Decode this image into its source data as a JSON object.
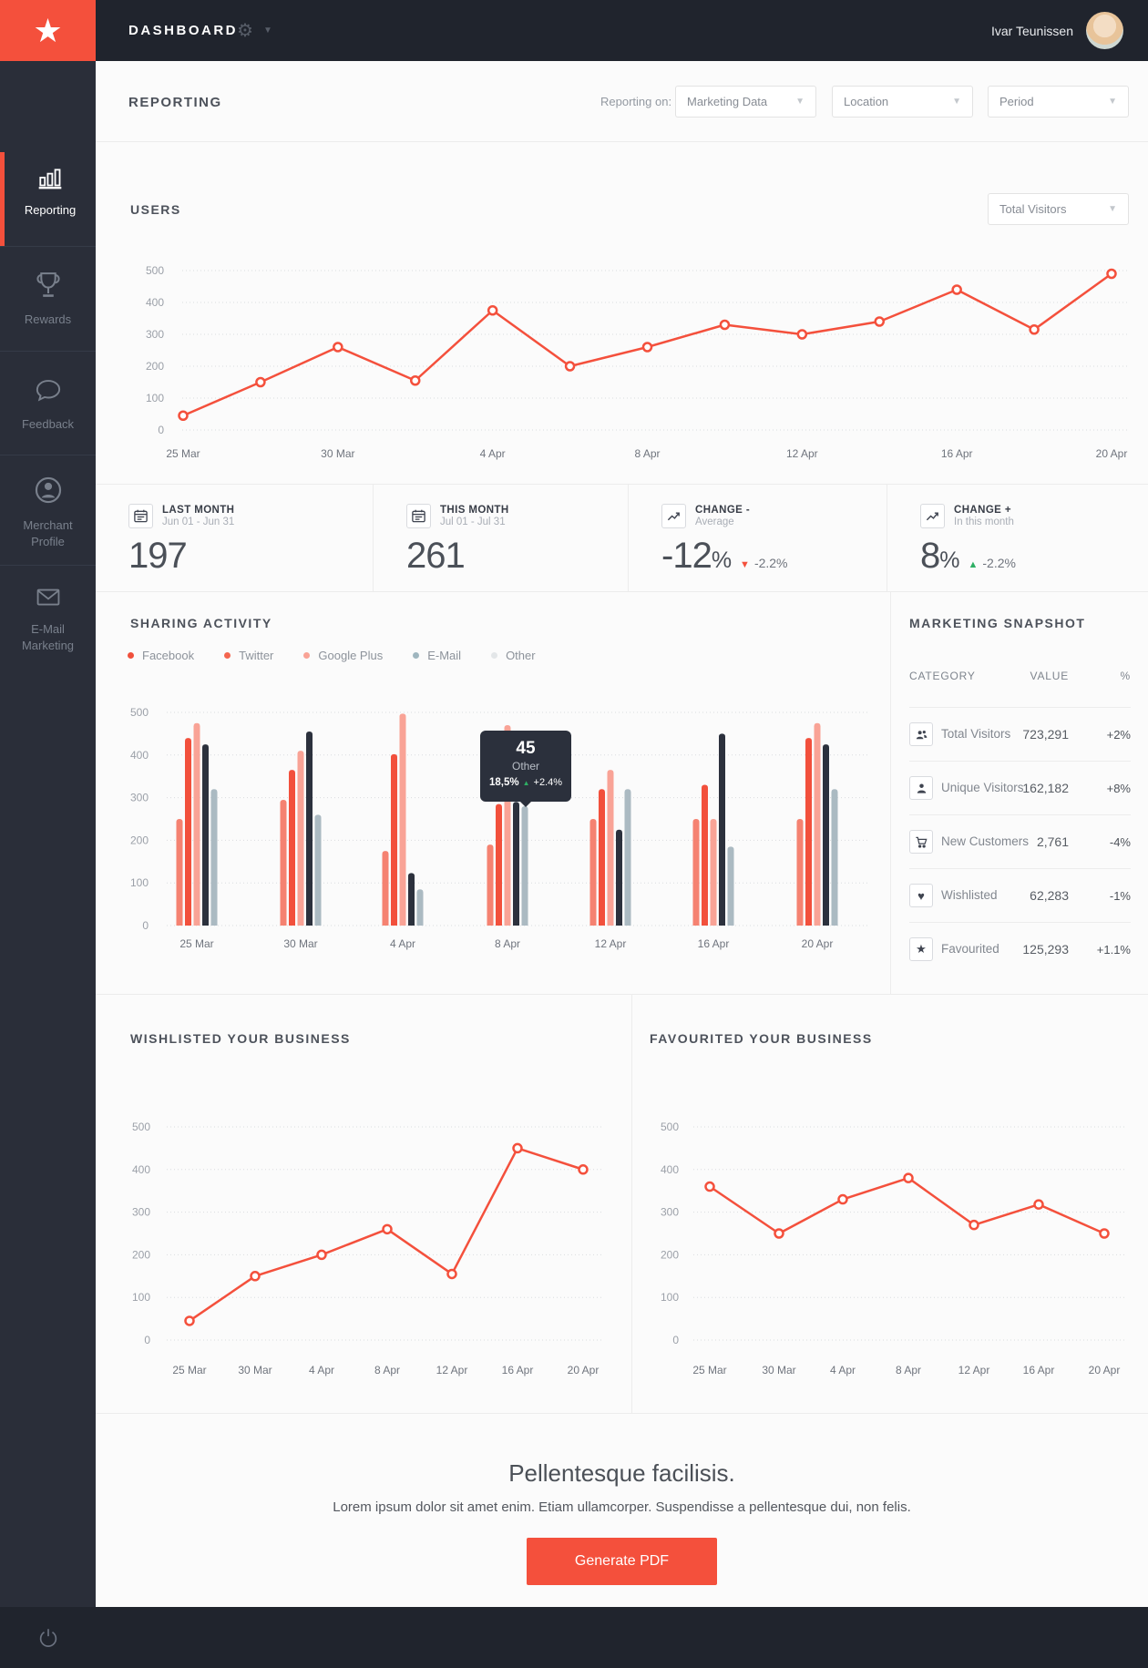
{
  "topbar": {
    "title": "DASHBOARD",
    "user_name": "Ivar Teunissen"
  },
  "sidebar": {
    "items": [
      {
        "label": "Reporting",
        "label2": "",
        "icon": "bar-chart-icon",
        "active": true
      },
      {
        "label": "Rewards",
        "label2": "",
        "icon": "trophy-icon",
        "active": false
      },
      {
        "label": "Feedback",
        "label2": "",
        "icon": "speech-bubble-icon",
        "active": false
      },
      {
        "label": "Merchant",
        "label2": "Profile",
        "icon": "merchant-profile-icon",
        "active": false
      },
      {
        "label": "E-Mail",
        "label2": "Marketing",
        "icon": "envelope-icon",
        "active": false
      }
    ]
  },
  "header": {
    "title": "REPORTING",
    "filter_label": "Reporting on:",
    "filters": [
      {
        "value": "Marketing Data"
      },
      {
        "value": "Location"
      },
      {
        "value": "Period"
      }
    ]
  },
  "users_section": {
    "title": "USERS",
    "dropdown_value": "Total Visitors"
  },
  "stats": [
    {
      "icon": "calendar-icon",
      "title": "LAST MONTH",
      "subtitle": "Jun 01 - Jun 31",
      "value": "197",
      "unit": "",
      "delta": "",
      "delta_dir": ""
    },
    {
      "icon": "calendar-icon",
      "title": "THIS MONTH",
      "subtitle": "Jul 01 - Jul 31",
      "value": "261",
      "unit": "",
      "delta": "",
      "delta_dir": ""
    },
    {
      "icon": "line-chart-icon",
      "title": "CHANGE -",
      "subtitle": "Average",
      "value": "-12",
      "unit": "%",
      "delta": "-2.2%",
      "delta_dir": "down"
    },
    {
      "icon": "line-chart-icon",
      "title": "CHANGE +",
      "subtitle": "In this month",
      "value": "8",
      "unit": "%",
      "delta": "-2.2%",
      "delta_dir": "up"
    }
  ],
  "sharing": {
    "title": "SHARING ACTIVITY",
    "legend": [
      {
        "label": "Facebook",
        "color": "#f0503c"
      },
      {
        "label": "Twitter",
        "color": "#f4664f"
      },
      {
        "label": "Google Plus",
        "color": "#f9a396"
      },
      {
        "label": "E-Mail",
        "color": "#9fb6bf"
      },
      {
        "label": "Other",
        "color": "#e3e6e8"
      }
    ],
    "tooltip": {
      "value": "45",
      "label": "Other",
      "pct": "18,5%",
      "delta": "+2.4%"
    }
  },
  "snapshot": {
    "title": "MARKETING SNAPSHOT",
    "columns": [
      "CATEGORY",
      "VALUE",
      "%"
    ],
    "rows": [
      {
        "icon": "users-icon",
        "label": "Total Visitors",
        "value": "723,291",
        "pct": "+2%"
      },
      {
        "icon": "user-icon",
        "label": "Unique Visitors",
        "value": "162,182",
        "pct": "+8%"
      },
      {
        "icon": "cart-icon",
        "label": "New Customers",
        "value": "2,761",
        "pct": "-4%"
      },
      {
        "icon": "heart-icon",
        "label": "Wishlisted",
        "value": "62,283",
        "pct": "-1%"
      },
      {
        "icon": "star-icon",
        "label": "Favourited",
        "value": "125,293",
        "pct": "+1.1%"
      }
    ]
  },
  "wishlisted_section": {
    "title": "WISHLISTED YOUR BUSINESS"
  },
  "favourited_section": {
    "title": "FAVOURITED YOUR BUSINESS"
  },
  "footer": {
    "heading": "Pellentesque facilisis.",
    "text": "Lorem ipsum dolor sit amet enim. Etiam ullamcorper. Suspendisse a pellentesque dui, non felis.",
    "button_label": "Generate PDF"
  },
  "colors": {
    "accent": "#f4503c",
    "green": "#2eaf64",
    "topbar": "#20242d",
    "sidebar": "#2a2e39"
  },
  "chart_data": [
    {
      "id": "users",
      "type": "line",
      "title": "USERS",
      "x_tick_labels": [
        "25 Mar",
        "30 Mar",
        "4 Apr",
        "8 Apr",
        "12 Apr",
        "16 Apr",
        "20 Apr"
      ],
      "values": [
        45,
        150,
        260,
        155,
        375,
        200,
        260,
        330,
        300,
        340,
        440,
        315,
        490
      ],
      "ylim": [
        0,
        500
      ],
      "yticks": [
        0,
        100,
        200,
        300,
        400,
        500
      ],
      "color": "#f4503c",
      "grid": "dotted-horizontal",
      "legend_position": "none",
      "note": "13 points; x tick labels shown on every other point"
    },
    {
      "id": "sharing",
      "type": "bar",
      "categories": [
        "25 Mar",
        "30 Mar",
        "4 Apr",
        "8 Apr",
        "12 Apr",
        "16 Apr",
        "20 Apr"
      ],
      "series": [
        {
          "name": "Facebook",
          "color": "#f58271",
          "values": [
            250,
            295,
            175,
            190,
            250,
            250,
            250
          ]
        },
        {
          "name": "Twitter",
          "color": "#f2503c",
          "values": [
            440,
            365,
            402,
            285,
            320,
            330,
            440
          ]
        },
        {
          "name": "Google Plus",
          "color": "#f9a396",
          "values": [
            475,
            410,
            497,
            470,
            365,
            250,
            475
          ]
        },
        {
          "name": "E-Mail",
          "color": "#2c313d",
          "values": [
            425,
            455,
            123,
            290,
            225,
            450,
            425
          ]
        },
        {
          "name": "Other",
          "color": "#abbac2",
          "values": [
            320,
            260,
            85,
            280,
            320,
            185,
            320
          ]
        }
      ],
      "ylim": [
        0,
        500
      ],
      "yticks": [
        0,
        100,
        200,
        300,
        400,
        500
      ],
      "grid": "dotted-horizontal",
      "legend_position": "top-left"
    },
    {
      "id": "wishlisted",
      "type": "line",
      "title": "WISHLISTED YOUR BUSINESS",
      "x_tick_labels": [
        "25 Mar",
        "30 Mar",
        "4 Apr",
        "8 Apr",
        "12 Apr",
        "16 Apr",
        "20 Apr"
      ],
      "values": [
        45,
        150,
        200,
        260,
        155,
        450,
        400
      ],
      "ylim": [
        0,
        500
      ],
      "yticks": [
        0,
        100,
        200,
        300,
        400,
        500
      ],
      "color": "#f4503c",
      "grid": "dotted-horizontal"
    },
    {
      "id": "favourited",
      "type": "line",
      "title": "FAVOURITED YOUR BUSINESS",
      "x_tick_labels": [
        "25 Mar",
        "30 Mar",
        "4 Apr",
        "8 Apr",
        "12 Apr",
        "16 Apr",
        "20 Apr"
      ],
      "values": [
        360,
        250,
        330,
        380,
        270,
        318,
        250
      ],
      "ylim": [
        0,
        500
      ],
      "yticks": [
        0,
        100,
        200,
        300,
        400,
        500
      ],
      "color": "#f4503c",
      "grid": "dotted-horizontal"
    }
  ]
}
